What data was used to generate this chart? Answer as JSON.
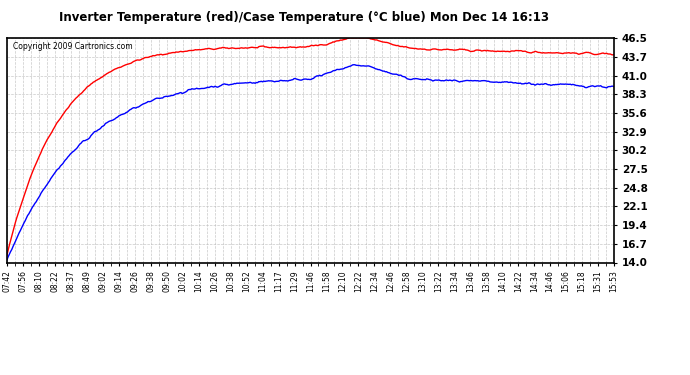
{
  "title": "Inverter Temperature (red)/Case Temperature (°C blue) Mon Dec 14 16:13",
  "copyright": "Copyright 2009 Cartronics.com",
  "yticks": [
    14.0,
    16.7,
    19.4,
    22.1,
    24.8,
    27.5,
    30.2,
    32.9,
    35.6,
    38.3,
    41.0,
    43.7,
    46.5
  ],
  "ymin": 14.0,
  "ymax": 46.5,
  "bg_color": "#ffffff",
  "plot_bg_color": "#f0f0f0",
  "grid_color": "#aaaaaa",
  "red_color": "#ff0000",
  "blue_color": "#0000ff",
  "x_labels": [
    "07:42",
    "07:56",
    "08:10",
    "08:22",
    "08:37",
    "08:49",
    "09:02",
    "09:14",
    "09:26",
    "09:38",
    "09:50",
    "10:02",
    "10:14",
    "10:26",
    "10:38",
    "10:52",
    "11:04",
    "11:17",
    "11:29",
    "11:46",
    "11:58",
    "12:10",
    "12:22",
    "12:34",
    "12:46",
    "12:58",
    "13:10",
    "13:22",
    "13:34",
    "13:46",
    "13:58",
    "14:10",
    "14:22",
    "14:34",
    "14:46",
    "15:06",
    "15:18",
    "15:31",
    "15:53"
  ]
}
